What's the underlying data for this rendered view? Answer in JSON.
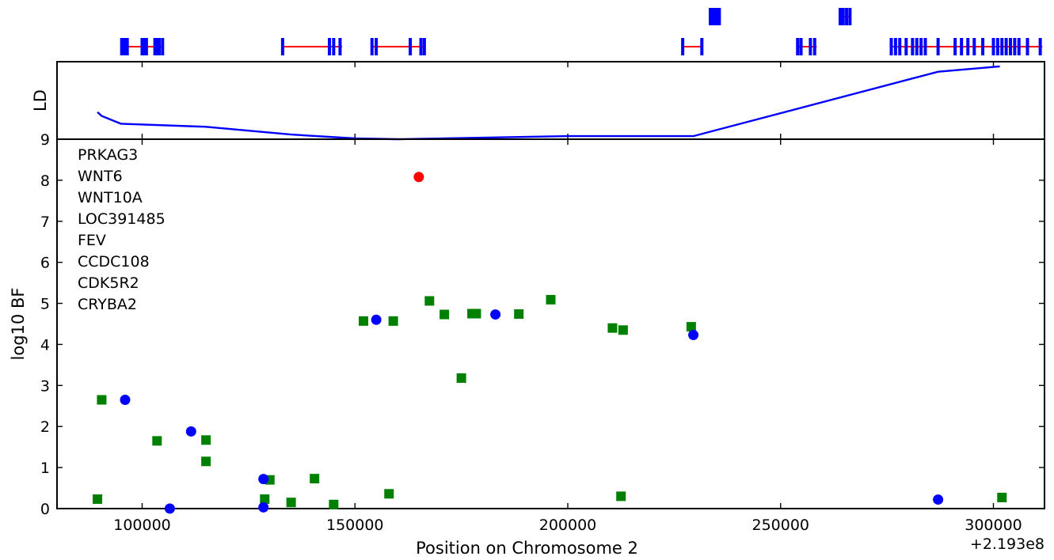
{
  "chart_data": [
    {
      "type": "gene-track",
      "xlim": [
        80000,
        312000
      ],
      "exon_color": "#0000ff",
      "intron_color": "#ff0000",
      "genes": [
        {
          "row": 1,
          "start": 95000,
          "end": 105000,
          "exons": [
            95200,
            95600,
            96000,
            96500,
            100000,
            100500,
            101000,
            103000,
            103500,
            104000,
            104800
          ]
        },
        {
          "row": 1,
          "start": 133000,
          "end": 147000,
          "exons": [
            133000,
            144000,
            145000,
            146500
          ]
        },
        {
          "row": 1,
          "start": 154000,
          "end": 166500,
          "exons": [
            154000,
            155000,
            163000,
            165500,
            166300
          ]
        },
        {
          "row": 1,
          "start": 227000,
          "end": 231500,
          "exons": [
            227000,
            231500
          ]
        },
        {
          "row": 2,
          "start": 233500,
          "end": 236000,
          "exons": [
            233500,
            234000,
            234500,
            235000,
            235600
          ]
        },
        {
          "row": 1,
          "start": 254000,
          "end": 258500,
          "exons": [
            254000,
            254800,
            257000,
            258000
          ]
        },
        {
          "row": 2,
          "start": 264000,
          "end": 266500,
          "exons": [
            264000,
            264700,
            265500,
            266300
          ]
        },
        {
          "row": 1,
          "start": 276000,
          "end": 311500,
          "exons": [
            276000,
            277000,
            278000,
            279500,
            281000,
            282000,
            283000,
            284000,
            287000,
            291000,
            292500,
            294000,
            295500,
            297500,
            300000,
            301000,
            302000,
            303000,
            304000,
            305000,
            306000,
            308000,
            311000
          ]
        }
      ]
    },
    {
      "type": "line",
      "ylabel": "LD",
      "xlim": [
        80000,
        312000
      ],
      "ylim": [
        0,
        1
      ],
      "color": "#0000ff",
      "x": [
        89500,
        90500,
        95000,
        115000,
        135000,
        150000,
        160000,
        200000,
        229500,
        287000,
        301500
      ],
      "y": [
        0.35,
        0.3,
        0.2,
        0.16,
        0.06,
        0.01,
        0.0,
        0.04,
        0.04,
        0.87,
        0.94
      ]
    },
    {
      "type": "scatter",
      "xlabel": "Position on Chromosome 2",
      "ylabel": "log10 BF",
      "offset_text": "+2.193e8",
      "xlim": [
        80000,
        312000
      ],
      "ylim": [
        0,
        9
      ],
      "xticks": [
        100000,
        150000,
        200000,
        250000,
        300000
      ],
      "xtick_labels": [
        "100000",
        "150000",
        "200000",
        "250000",
        "300000"
      ],
      "yticks": [
        0,
        1,
        2,
        3,
        4,
        5,
        6,
        7,
        8,
        9
      ],
      "ytick_labels": [
        "0",
        "1",
        "2",
        "3",
        "4",
        "5",
        "6",
        "7",
        "8",
        "9"
      ],
      "gene_list": [
        "PRKAG3",
        "WNT6",
        "WNT10A",
        "LOC391485",
        "FEV",
        "CCDC108",
        "CDK5R2",
        "CRYBA2"
      ],
      "series": [
        {
          "marker": "square",
          "color": "#008000",
          "points": [
            {
              "x": 89500,
              "y": 0.23
            },
            {
              "x": 90500,
              "y": 2.65
            },
            {
              "x": 103500,
              "y": 1.65
            },
            {
              "x": 115000,
              "y": 1.67
            },
            {
              "x": 115000,
              "y": 1.15
            },
            {
              "x": 128800,
              "y": 0.23
            },
            {
              "x": 130000,
              "y": 0.7
            },
            {
              "x": 135000,
              "y": 0.15
            },
            {
              "x": 140500,
              "y": 0.73
            },
            {
              "x": 145000,
              "y": 0.1
            },
            {
              "x": 152000,
              "y": 4.57
            },
            {
              "x": 158000,
              "y": 0.36
            },
            {
              "x": 159000,
              "y": 4.57
            },
            {
              "x": 167500,
              "y": 5.06
            },
            {
              "x": 171000,
              "y": 4.73
            },
            {
              "x": 175000,
              "y": 3.18
            },
            {
              "x": 177500,
              "y": 4.75
            },
            {
              "x": 178500,
              "y": 4.75
            },
            {
              "x": 188500,
              "y": 4.74
            },
            {
              "x": 196000,
              "y": 5.09
            },
            {
              "x": 210500,
              "y": 4.4
            },
            {
              "x": 212500,
              "y": 0.3
            },
            {
              "x": 213000,
              "y": 4.35
            },
            {
              "x": 229000,
              "y": 4.43
            },
            {
              "x": 302000,
              "y": 0.27
            }
          ]
        },
        {
          "marker": "circle",
          "color": "#0000ff",
          "points": [
            {
              "x": 96000,
              "y": 2.65
            },
            {
              "x": 106500,
              "y": 0.0
            },
            {
              "x": 111500,
              "y": 1.88
            },
            {
              "x": 128500,
              "y": 0.72
            },
            {
              "x": 128500,
              "y": 0.03
            },
            {
              "x": 155000,
              "y": 4.6
            },
            {
              "x": 183000,
              "y": 4.73
            },
            {
              "x": 229500,
              "y": 4.23
            },
            {
              "x": 287000,
              "y": 0.22
            }
          ]
        },
        {
          "marker": "circle",
          "color": "#ff0000",
          "points": [
            {
              "x": 165000,
              "y": 8.08
            }
          ]
        }
      ]
    }
  ]
}
